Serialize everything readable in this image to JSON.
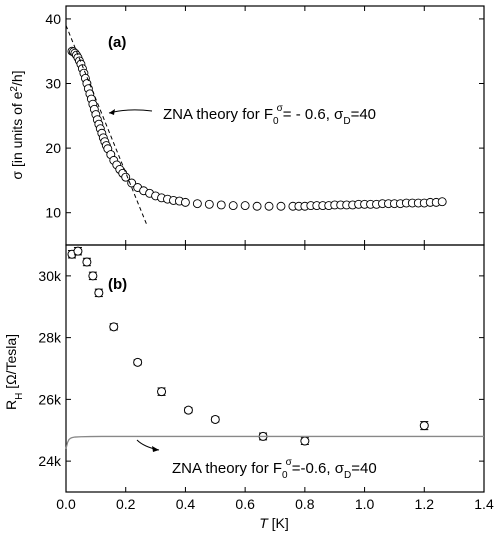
{
  "chart_data": [
    {
      "type": "scatter",
      "panel_label": "(a)",
      "ylabel": "σ [in units of e²/h]",
      "ylabel_parts": {
        "main": "σ [in units of e",
        "sup": "2",
        "end": "/h]"
      },
      "xlim": [
        0.0,
        1.4
      ],
      "ylim": [
        5,
        42
      ],
      "y_ticks": [
        10,
        20,
        30,
        40
      ],
      "y_tick_labels": [
        "10",
        "20",
        "30",
        "40"
      ],
      "series": [
        {
          "marker": "open-circle",
          "x": [
            0.02,
            0.025,
            0.03,
            0.035,
            0.04,
            0.045,
            0.05,
            0.055,
            0.06,
            0.065,
            0.07,
            0.075,
            0.08,
            0.085,
            0.09,
            0.095,
            0.1,
            0.105,
            0.11,
            0.115,
            0.12,
            0.125,
            0.13,
            0.135,
            0.14,
            0.15,
            0.16,
            0.17,
            0.18,
            0.19,
            0.2,
            0.22,
            0.24,
            0.26,
            0.28,
            0.3,
            0.32,
            0.34,
            0.36,
            0.38,
            0.4,
            0.44,
            0.48,
            0.52,
            0.56,
            0.6,
            0.64,
            0.68,
            0.72,
            0.76,
            0.78,
            0.8,
            0.82,
            0.84,
            0.86,
            0.88,
            0.9,
            0.92,
            0.94,
            0.96,
            0.98,
            1.0,
            1.02,
            1.04,
            1.06,
            1.08,
            1.1,
            1.12,
            1.14,
            1.16,
            1.18,
            1.2,
            1.22,
            1.24,
            1.26
          ],
          "y": [
            35.0,
            34.9,
            34.7,
            34.4,
            34.0,
            33.5,
            33.0,
            32.3,
            31.6,
            30.8,
            30.0,
            29.2,
            28.4,
            27.6,
            26.8,
            26.0,
            25.2,
            24.4,
            23.7,
            23.0,
            22.3,
            21.6,
            21.0,
            20.4,
            19.9,
            19.0,
            18.1,
            17.4,
            16.7,
            16.1,
            15.5,
            14.6,
            13.9,
            13.4,
            13.0,
            12.6,
            12.3,
            12.1,
            11.9,
            11.8,
            11.6,
            11.4,
            11.3,
            11.2,
            11.1,
            11.1,
            11.0,
            11.0,
            11.0,
            11.0,
            11.0,
            11.0,
            11.1,
            11.1,
            11.1,
            11.1,
            11.2,
            11.2,
            11.2,
            11.2,
            11.3,
            11.3,
            11.3,
            11.3,
            11.4,
            11.4,
            11.4,
            11.4,
            11.5,
            11.5,
            11.5,
            11.5,
            11.6,
            11.6,
            11.7
          ]
        },
        {
          "marker": "dashed-line",
          "x": [
            0.0,
            0.27
          ],
          "y": [
            39.0,
            8.2
          ]
        }
      ],
      "annotation": {
        "text_main": "ZNA theory for F",
        "sub0": "0",
        "sup_sigma": "σ",
        "text_mid": "= - 0.6, σ",
        "subD": "D",
        "text_end": "=40"
      }
    },
    {
      "type": "scatter",
      "panel_label": "(b)",
      "ylabel_parts": {
        "main": "R",
        "sub": "H",
        "end": " [Ω/Tesla]"
      },
      "xlabel_parts": {
        "italic": "T",
        "end": " [K]"
      },
      "xlim": [
        0.0,
        1.4
      ],
      "ylim": [
        23000,
        31000
      ],
      "x_ticks": [
        0.0,
        0.2,
        0.4,
        0.6,
        0.8,
        1.0,
        1.2,
        1.4
      ],
      "x_tick_labels": [
        "0.0",
        "0.2",
        "0.4",
        "0.6",
        "0.8",
        "1.0",
        "1.2",
        "1.4"
      ],
      "y_ticks": [
        24000,
        26000,
        28000,
        30000
      ],
      "y_tick_labels": [
        "24k",
        "26k",
        "28k",
        "30k"
      ],
      "series": [
        {
          "marker": "open-circle-errorbar",
          "x": [
            0.02,
            0.04,
            0.07,
            0.09,
            0.11,
            0.16,
            0.24,
            0.32,
            0.41,
            0.5,
            0.66,
            0.8,
            1.2
          ],
          "y": [
            30700,
            30800,
            30450,
            30000,
            29450,
            28350,
            27200,
            26250,
            25650,
            25350,
            24800,
            24650,
            25150
          ],
          "err": [
            120,
            120,
            120,
            120,
            120,
            100,
            80,
            120,
            80,
            80,
            110,
            110,
            130
          ]
        },
        {
          "marker": "solid-line-gray",
          "x": [
            0.0,
            0.005,
            0.01,
            0.015,
            0.02,
            0.03,
            0.05,
            0.08,
            0.12,
            0.2,
            0.4,
            0.8,
            1.4
          ],
          "y": [
            24400,
            24600,
            24700,
            24740,
            24760,
            24780,
            24790,
            24795,
            24800,
            24800,
            24800,
            24800,
            24800
          ]
        }
      ],
      "annotation": {
        "text_main": "ZNA theory for F",
        "sub0": "0",
        "sup_sigma": "σ",
        "text_mid": "=-0.6, σ",
        "subD": "D",
        "text_end": "=40"
      }
    }
  ]
}
